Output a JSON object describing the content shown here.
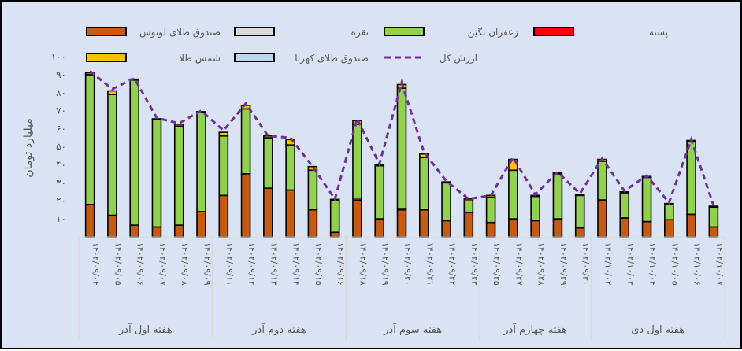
{
  "chart_data": {
    "type": "bar",
    "stacked": true,
    "title": "",
    "xlabel": "",
    "ylabel": "میلیارد تومان",
    "ylim": [
      0,
      100
    ],
    "yticks": [
      10,
      20,
      30,
      40,
      50,
      60,
      70,
      80,
      90,
      100
    ],
    "ytick_labels": [
      "۱۰",
      "۲۰",
      "۳۰",
      "۴۰",
      "۵۰",
      "۶۰",
      "۷۰",
      "۸۰",
      "۹۰",
      "۱۰۰"
    ],
    "grid": false,
    "legend_position": "top",
    "categories": [
      "۱۴۰۲/۰۹/۰۴",
      "۱۴۰۲/۰۹/۰۵",
      "۱۴۰۲/۰۹/۰۶",
      "۱۴۰۲/۰۹/۰۷",
      "۱۴۰۲/۰۹/۰۸",
      "۱۴۰۲/۰۹/۰۹",
      "۱۴۰۲/۰۹/۱۱",
      "۱۴۰۲/۰۹/۱۲",
      "۱۴۰۲/۰۹/۱۳",
      "۱۴۰۲/۰۹/۱۴",
      "۱۴۰۲/۰۹/۱۵",
      "۱۴۰۲/۰۹/۱۶",
      "۱۴۰۲/۰۹/۱۸",
      "۱۴۰۲/۰۹/۱۹",
      "۱۴۰۲/۰۹/۲۰",
      "۱۴۰۲/۰۹/۲۱",
      "۱۴۰۲/۰۹/۲۲",
      "۱۴۰۲/۰۹/۲۳",
      "۱۴۰۲/۰۹/۲۵",
      "۱۴۰۲/۰۹/۲۷",
      "۱۴۰۲/۰۹/۲۸",
      "۱۴۰۲/۰۹/۲۹",
      "۱۴۰۲/۰۹/۳۰",
      "۱۴۰۲/۱۰/۰۲",
      "۱۴۰۲/۱۰/۰۳",
      "۱۴۰۲/۱۰/۰۴",
      "۱۴۰۲/۱۰/۰۵",
      "۱۴۰۲/۱۰/۰۶",
      "۱۴۰۲/۱۰/۰۷"
    ],
    "groups": [
      {
        "label": "هفته اول آذر",
        "count": 6
      },
      {
        "label": "هفته دوم آذر",
        "count": 6
      },
      {
        "label": "هفته سوم آذر",
        "count": 6
      },
      {
        "label": "هفته چهارم آذر",
        "count": 5
      },
      {
        "label": "هفته اول دی",
        "count": 6
      }
    ],
    "series": [
      {
        "name": "صندوق طلای لوتوس",
        "color": "#c55a11",
        "values": [
          18,
          12,
          6.5,
          5.5,
          6.5,
          14,
          23,
          35,
          27,
          26,
          15,
          2.5,
          20.5,
          10,
          15,
          15,
          9,
          13.5,
          8,
          10,
          9,
          10,
          5,
          20.5,
          10.5,
          8.5,
          9.5,
          12.5,
          5.5
        ]
      },
      {
        "name": "نقره",
        "color": "#d9d9d9",
        "values": [
          0,
          0,
          0,
          0,
          0,
          0,
          0,
          0,
          0,
          0,
          0,
          0,
          1,
          0,
          0.7,
          0,
          0,
          0,
          0,
          0,
          0,
          0,
          0,
          0,
          0,
          0,
          0,
          0,
          0
        ]
      },
      {
        "name": "زعفران نگین",
        "color": "#92d050",
        "values": [
          72,
          67,
          80.5,
          59.5,
          55,
          55,
          33,
          36,
          28,
          25,
          22,
          18,
          41,
          29.5,
          66.8,
          29,
          21,
          6.5,
          14,
          27,
          13.5,
          25,
          18,
          21.5,
          14,
          24.5,
          8.5,
          40.5,
          11
        ]
      },
      {
        "name": "پسته",
        "color": "#ff0000",
        "values": [
          0,
          0,
          0,
          0,
          0,
          0,
          0,
          0,
          0,
          0,
          0,
          0,
          0,
          0,
          0,
          0,
          0,
          0,
          0,
          0,
          0,
          0,
          0,
          0,
          0,
          0,
          0,
          0,
          0
        ]
      },
      {
        "name": "شمش طلا",
        "color": "#ffc000",
        "values": [
          1,
          2,
          0.5,
          0.5,
          1,
          0.5,
          2,
          2,
          1,
          3,
          2,
          0.3,
          2,
          0.5,
          2,
          2,
          0.5,
          1,
          1,
          6,
          0.5,
          0.5,
          0.5,
          1,
          0.5,
          0.5,
          0.5,
          0.5,
          0.5
        ]
      },
      {
        "name": "صندوق طلای کهربا",
        "color": "#bdd7ee",
        "values": [
          0,
          0,
          0,
          0,
          0,
          0,
          0,
          0,
          0,
          0,
          0,
          0,
          0,
          0,
          0,
          0,
          0,
          0,
          0,
          0,
          0,
          0,
          0,
          0,
          0,
          0,
          0,
          0,
          0
        ]
      },
      {
        "name": "ارزش کل",
        "color": "#7030a0",
        "type": "line",
        "style": "dashed",
        "values": [
          92,
          82,
          88,
          66,
          63,
          70,
          59,
          74,
          56,
          55,
          39,
          21,
          65.5,
          40.5,
          85.5,
          47,
          31,
          21,
          23,
          44,
          23.5,
          36,
          24,
          43.5,
          25.5,
          34,
          19,
          54,
          17.5
        ]
      }
    ]
  },
  "legend": {
    "row1": [
      {
        "name": "صندوق طلای لوتوس",
        "color": "#c55a11"
      },
      {
        "name": "نقره",
        "color": "#d9d9d9"
      },
      {
        "name": "زعفران نگین",
        "color": "#92d050"
      },
      {
        "name": "پسته",
        "color": "#ff0000"
      }
    ],
    "row2": [
      {
        "name": "شمش طلا",
        "color": "#ffc000"
      },
      {
        "name": "صندوق طلای کهربا",
        "color": "#bdd7ee"
      },
      {
        "name": "ارزش کل",
        "color": "#7030a0",
        "line": true
      }
    ]
  }
}
